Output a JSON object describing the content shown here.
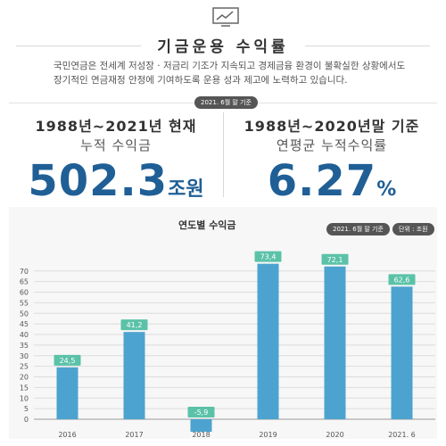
{
  "header": {
    "icon": "chart-monitor-icon",
    "title": "기금운용 수익률",
    "description_line1": "국민연금은 전세계 저성장 · 저금리 기조가 지속되고 경제금융 환경이 불확실한 상황에서도",
    "description_line2": "장기적인 연금재정 안정에 기여하도록 운용 성과 제고에 노력하고 있습니다.",
    "date_badge": "2021. 6월 말 기준"
  },
  "left_panel": {
    "period": "1988년~2021년 현재",
    "label": "누적 수익금",
    "value": "502.3",
    "unit": "조원"
  },
  "right_panel": {
    "period": "1988년~2020년말 기준",
    "label": "연평균 누적수익률",
    "value": "6.27",
    "unit": "%"
  },
  "colors": {
    "bar": "#4da3cf",
    "label_bg": "#5bc2a8",
    "accent": "#1f5f96"
  },
  "chart_data": {
    "type": "bar",
    "title": "연도별 수익금",
    "date_badge": "2021. 6월 말 기준",
    "unit_badge": "단위 : 조원",
    "categories": [
      "2016",
      "2017",
      "2018",
      "2019",
      "2020",
      "2021. 6"
    ],
    "values": [
      24.5,
      41.2,
      -5.9,
      73.4,
      72.1,
      62.6
    ],
    "value_labels": [
      "24,5",
      "41,2",
      "-5,9",
      "73,4",
      "72,1",
      "62,6"
    ],
    "yticks": [
      "0",
      "5",
      "10",
      "15",
      "20",
      "25",
      "30",
      "35",
      "40",
      "45",
      "50",
      "55",
      "60",
      "65",
      "70"
    ],
    "ylim": [
      -5.9,
      75
    ],
    "grid": true
  }
}
